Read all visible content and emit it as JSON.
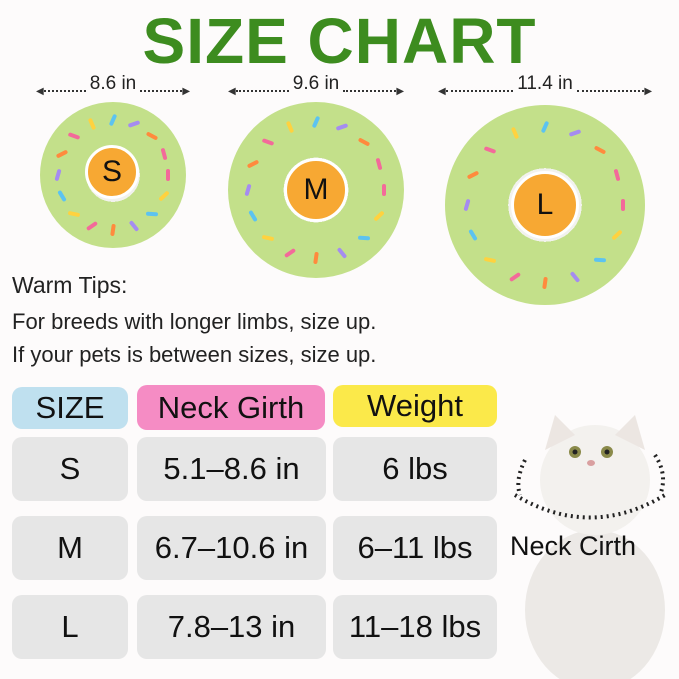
{
  "title": "SIZE CHART",
  "measurements": [
    "8.6 in",
    "9.6 in",
    "11.4 in"
  ],
  "donut_sizes": [
    "S",
    "M",
    "L"
  ],
  "tips": {
    "heading": "Warm Tips:",
    "lines": [
      "For breeds with longer limbs, size up.",
      "If your pets is between sizes, size up."
    ]
  },
  "table": {
    "headers": [
      "SIZE",
      "Neck Girth",
      "Weight"
    ],
    "header_colors": [
      "#bfe0ef",
      "#f58cc4",
      "#fbe94a"
    ],
    "rows": [
      [
        "S",
        "5.1–8.6 in",
        "6 lbs"
      ],
      [
        "M",
        "6.7–10.6 in",
        "6–11 lbs"
      ],
      [
        "L",
        "7.8–13 in",
        "11–18 lbs"
      ]
    ]
  },
  "cat_label": "Neck Cirth",
  "colors": {
    "title": "#3d8c1f",
    "donut": "#c3e08a",
    "badge": "#f7a833",
    "cell": "#e6e6e6"
  }
}
